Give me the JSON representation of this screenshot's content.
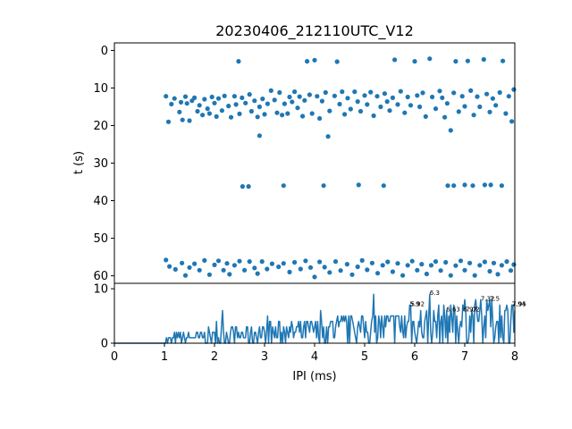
{
  "chart_data": [
    {
      "type": "scatter",
      "title": "20230406_212110UTC_V12",
      "xlabel": "",
      "ylabel": "t (s)",
      "xlim": [
        0,
        8
      ],
      "ylim": [
        62,
        -2
      ],
      "y_inverted": true,
      "grid": false,
      "color": "#1f77b4",
      "yticks": [
        0,
        10,
        20,
        30,
        40,
        50,
        60
      ],
      "series": [
        {
          "points": [
            [
              1.03,
              12.2
            ],
            [
              1.08,
              19.0
            ],
            [
              1.14,
              14.3
            ],
            [
              1.2,
              12.8
            ],
            [
              1.3,
              16.4
            ],
            [
              1.33,
              13.8
            ],
            [
              1.36,
              18.5
            ],
            [
              1.42,
              12.3
            ],
            [
              1.45,
              14.1
            ],
            [
              1.5,
              18.7
            ],
            [
              1.55,
              13.4
            ],
            [
              1.6,
              12.6
            ],
            [
              1.66,
              16.2
            ],
            [
              1.7,
              14.6
            ],
            [
              1.76,
              17.2
            ],
            [
              1.8,
              13.0
            ],
            [
              1.86,
              15.5
            ],
            [
              1.9,
              16.8
            ],
            [
              1.95,
              12.4
            ],
            [
              2.0,
              14.0
            ],
            [
              2.04,
              17.6
            ],
            [
              2.08,
              12.8
            ],
            [
              2.15,
              16.0
            ],
            [
              2.2,
              12.1
            ],
            [
              2.28,
              14.8
            ],
            [
              2.33,
              17.8
            ],
            [
              2.4,
              12.2
            ],
            [
              2.43,
              14.4
            ],
            [
              2.48,
              2.9
            ],
            [
              2.5,
              16.9
            ],
            [
              2.55,
              12.6
            ],
            [
              2.62,
              14.0
            ],
            [
              2.7,
              11.7
            ],
            [
              2.74,
              16.2
            ],
            [
              2.8,
              13.4
            ],
            [
              2.86,
              17.7
            ],
            [
              2.9,
              15.0
            ],
            [
              2.96,
              12.9
            ],
            [
              3.0,
              17.0
            ],
            [
              3.06,
              14.2
            ],
            [
              3.13,
              10.7
            ],
            [
              3.2,
              13.2
            ],
            [
              3.25,
              16.6
            ],
            [
              3.3,
              11.2
            ],
            [
              3.35,
              17.2
            ],
            [
              3.4,
              14.2
            ],
            [
              3.46,
              16.8
            ],
            [
              3.5,
              12.4
            ],
            [
              3.55,
              13.7
            ],
            [
              3.6,
              11.0
            ],
            [
              3.66,
              15.3
            ],
            [
              3.7,
              12.3
            ],
            [
              3.76,
              17.5
            ],
            [
              3.8,
              13.3
            ],
            [
              3.85,
              2.9
            ],
            [
              3.9,
              11.8
            ],
            [
              3.95,
              16.8
            ],
            [
              4.0,
              2.6
            ],
            [
              4.05,
              12.2
            ],
            [
              4.1,
              18.1
            ],
            [
              4.15,
              13.5
            ],
            [
              4.22,
              11.2
            ],
            [
              4.3,
              16.1
            ],
            [
              4.4,
              12.1
            ],
            [
              4.45,
              3.0
            ],
            [
              4.5,
              14.3
            ],
            [
              4.55,
              11.0
            ],
            [
              4.6,
              17.0
            ],
            [
              4.66,
              12.7
            ],
            [
              4.72,
              15.6
            ],
            [
              4.8,
              11.0
            ],
            [
              4.86,
              13.6
            ],
            [
              4.92,
              16.2
            ],
            [
              5.0,
              12.0
            ],
            [
              5.05,
              14.4
            ],
            [
              5.12,
              11.1
            ],
            [
              5.18,
              17.4
            ],
            [
              5.25,
              12.2
            ],
            [
              5.32,
              15.0
            ],
            [
              5.4,
              11.5
            ],
            [
              5.45,
              13.6
            ],
            [
              5.5,
              16.0
            ],
            [
              5.56,
              12.6
            ],
            [
              5.6,
              2.5
            ],
            [
              5.66,
              14.4
            ],
            [
              5.72,
              10.9
            ],
            [
              5.8,
              16.6
            ],
            [
              5.86,
              12.4
            ],
            [
              5.92,
              14.6
            ],
            [
              6.0,
              2.9
            ],
            [
              6.05,
              12.0
            ],
            [
              6.1,
              15.0
            ],
            [
              6.16,
              11.3
            ],
            [
              6.22,
              17.6
            ],
            [
              6.3,
              2.2
            ],
            [
              6.35,
              12.4
            ],
            [
              6.42,
              15.5
            ],
            [
              6.5,
              10.8
            ],
            [
              6.55,
              12.6
            ],
            [
              6.6,
              17.8
            ],
            [
              6.65,
              14.1
            ],
            [
              6.72,
              21.3
            ],
            [
              6.78,
              11.3
            ],
            [
              6.82,
              2.9
            ],
            [
              6.88,
              16.3
            ],
            [
              6.95,
              12.2
            ],
            [
              7.0,
              14.9
            ],
            [
              7.06,
              2.8
            ],
            [
              7.12,
              10.7
            ],
            [
              7.18,
              17.2
            ],
            [
              7.25,
              12.3
            ],
            [
              7.3,
              15.0
            ],
            [
              7.38,
              2.4
            ],
            [
              7.44,
              11.6
            ],
            [
              7.5,
              16.4
            ],
            [
              7.56,
              12.8
            ],
            [
              7.62,
              14.6
            ],
            [
              7.7,
              11.2
            ],
            [
              7.76,
              2.8
            ],
            [
              7.82,
              16.8
            ],
            [
              7.88,
              12.2
            ],
            [
              7.94,
              18.9
            ],
            [
              7.98,
              10.4
            ],
            [
              2.9,
              22.7
            ],
            [
              4.27,
              22.9
            ],
            [
              2.56,
              36.2
            ],
            [
              2.68,
              36.2
            ],
            [
              3.38,
              36.0
            ],
            [
              4.18,
              36.0
            ],
            [
              4.88,
              35.8
            ],
            [
              5.38,
              36.0
            ],
            [
              6.66,
              36.0
            ],
            [
              6.78,
              36.0
            ],
            [
              7.0,
              35.8
            ],
            [
              7.16,
              36.0
            ],
            [
              7.4,
              35.8
            ],
            [
              7.52,
              35.8
            ],
            [
              7.74,
              36.0
            ],
            [
              1.03,
              55.8
            ],
            [
              1.1,
              57.5
            ],
            [
              1.22,
              58.3
            ],
            [
              1.35,
              56.6
            ],
            [
              1.42,
              59.9
            ],
            [
              1.5,
              57.8
            ],
            [
              1.6,
              56.8
            ],
            [
              1.7,
              58.5
            ],
            [
              1.8,
              55.9
            ],
            [
              1.9,
              59.7
            ],
            [
              2.0,
              57.1
            ],
            [
              2.08,
              56.0
            ],
            [
              2.18,
              58.5
            ],
            [
              2.25,
              56.7
            ],
            [
              2.3,
              59.6
            ],
            [
              2.4,
              57.2
            ],
            [
              2.5,
              56.1
            ],
            [
              2.6,
              58.5
            ],
            [
              2.7,
              56.2
            ],
            [
              2.8,
              57.9
            ],
            [
              2.86,
              59.4
            ],
            [
              2.95,
              56.2
            ],
            [
              3.05,
              58.2
            ],
            [
              3.15,
              56.8
            ],
            [
              3.28,
              57.6
            ],
            [
              3.38,
              56.7
            ],
            [
              3.5,
              59.0
            ],
            [
              3.6,
              56.4
            ],
            [
              3.72,
              58.2
            ],
            [
              3.82,
              56.0
            ],
            [
              3.92,
              57.8
            ],
            [
              4.0,
              60.3
            ],
            [
              4.1,
              56.3
            ],
            [
              4.2,
              57.7
            ],
            [
              4.3,
              59.1
            ],
            [
              4.42,
              56.2
            ],
            [
              4.52,
              58.6
            ],
            [
              4.65,
              56.9
            ],
            [
              4.75,
              59.7
            ],
            [
              4.86,
              57.6
            ],
            [
              4.95,
              55.9
            ],
            [
              5.05,
              58.4
            ],
            [
              5.15,
              56.6
            ],
            [
              5.26,
              59.3
            ],
            [
              5.36,
              57.2
            ],
            [
              5.46,
              56.3
            ],
            [
              5.56,
              58.9
            ],
            [
              5.66,
              56.7
            ],
            [
              5.76,
              59.9
            ],
            [
              5.86,
              57.2
            ],
            [
              5.95,
              56.1
            ],
            [
              6.05,
              58.5
            ],
            [
              6.14,
              56.9
            ],
            [
              6.24,
              59.5
            ],
            [
              6.33,
              57.2
            ],
            [
              6.42,
              56.2
            ],
            [
              6.52,
              58.6
            ],
            [
              6.62,
              56.4
            ],
            [
              6.72,
              59.9
            ],
            [
              6.82,
              57.3
            ],
            [
              6.92,
              56.0
            ],
            [
              7.0,
              58.5
            ],
            [
              7.1,
              56.6
            ],
            [
              7.2,
              59.9
            ],
            [
              7.3,
              57.2
            ],
            [
              7.4,
              56.3
            ],
            [
              7.5,
              58.8
            ],
            [
              7.58,
              56.6
            ],
            [
              7.66,
              59.6
            ],
            [
              7.74,
              57.2
            ],
            [
              7.84,
              56.2
            ],
            [
              7.92,
              58.6
            ],
            [
              7.98,
              57.0
            ]
          ]
        }
      ]
    },
    {
      "type": "line",
      "title": "",
      "xlabel": "IPI (ms)",
      "ylabel": "",
      "xlim": [
        0,
        8
      ],
      "ylim": [
        0,
        11
      ],
      "grid": false,
      "color": "#1f77b4",
      "xticks": [
        0,
        1,
        2,
        3,
        4,
        5,
        6,
        7,
        8
      ],
      "yticks": [
        0,
        10
      ],
      "seed": 7,
      "peaks": [
        {
          "x": 5.9,
          "y": 7,
          "label": "5.9"
        },
        {
          "x": 5.92,
          "y": 7,
          "label": "5.92"
        },
        {
          "x": 6.3,
          "y": 9,
          "label": "6.3"
        },
        {
          "x": 6.63,
          "y": 6,
          "label": "6.63"
        },
        {
          "x": 6.97,
          "y": 6,
          "label": "6.97"
        },
        {
          "x": 7.02,
          "y": 6,
          "label": "7.02"
        },
        {
          "x": 7.32,
          "y": 8,
          "label": "7.32"
        },
        {
          "x": 7.5,
          "y": 8,
          "label": "7.5"
        },
        {
          "x": 7.94,
          "y": 7,
          "label": "7.94"
        },
        {
          "x": 7.95,
          "y": 7,
          "label": "7.95"
        }
      ]
    }
  ]
}
